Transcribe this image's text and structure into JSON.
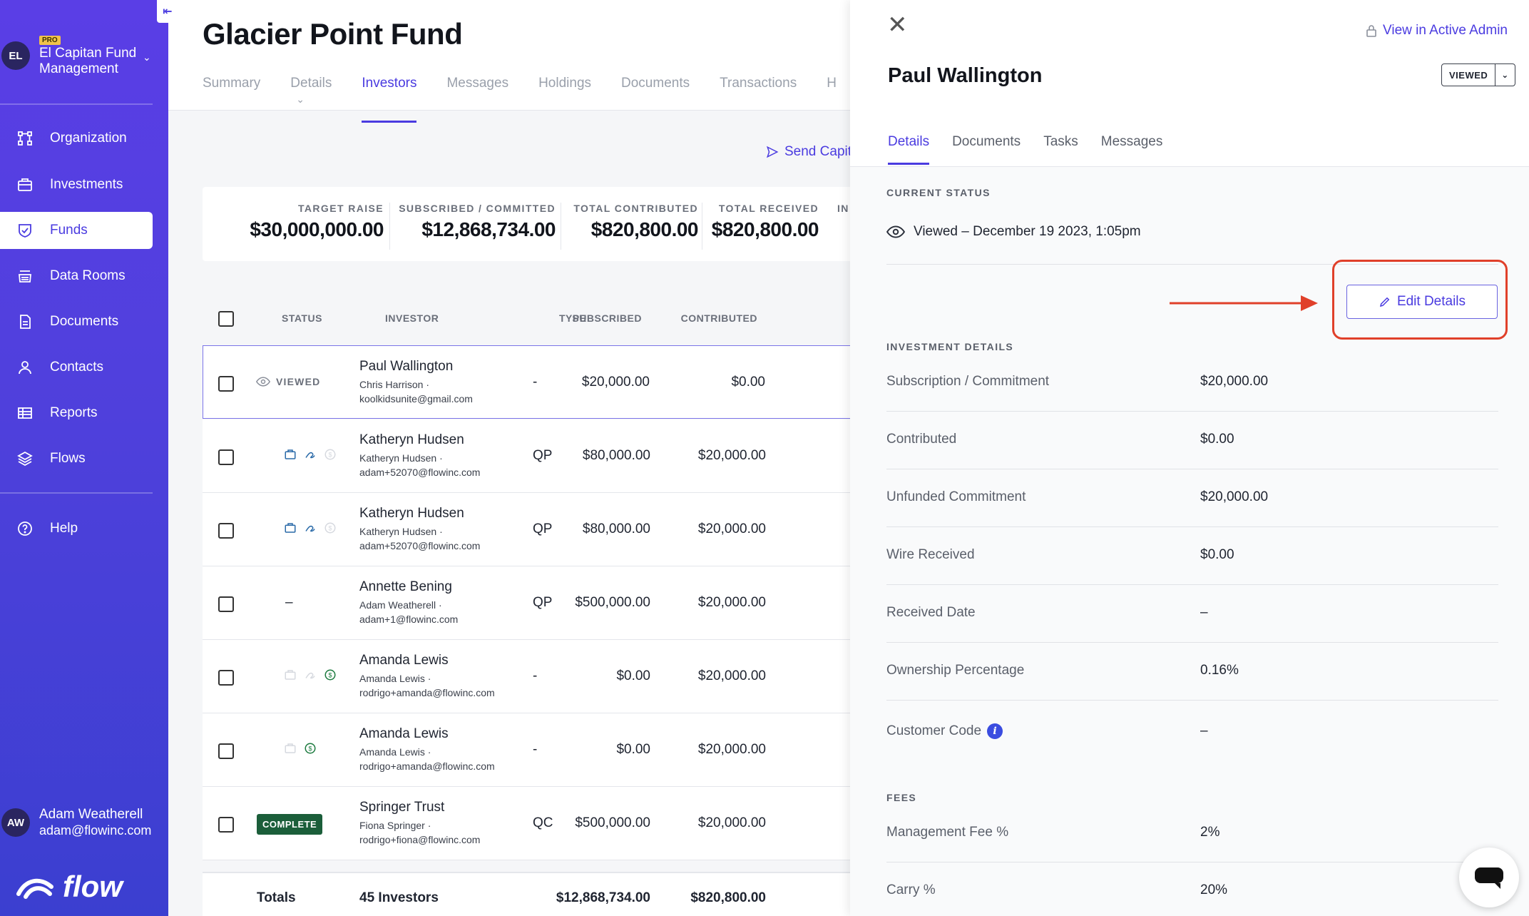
{
  "sidebar": {
    "collapse_icon": "collapse-left-icon",
    "org": {
      "initials": "EL",
      "badge": "PRO",
      "name": "El Capitan Fund Management"
    },
    "items": [
      {
        "label": "Organization",
        "icon": "org-chart-icon"
      },
      {
        "label": "Investments",
        "icon": "briefcase-icon"
      },
      {
        "label": "Funds",
        "icon": "shield-check-icon",
        "active": true
      },
      {
        "label": "Data Rooms",
        "icon": "database-icon"
      },
      {
        "label": "Documents",
        "icon": "document-icon"
      },
      {
        "label": "Contacts",
        "icon": "person-icon"
      },
      {
        "label": "Reports",
        "icon": "table-icon"
      },
      {
        "label": "Flows",
        "icon": "layers-icon"
      },
      {
        "label": "Help",
        "icon": "help-circle-icon"
      }
    ],
    "user": {
      "initials": "AW",
      "name": "Adam Weatherell",
      "email": "adam@flowinc.com"
    },
    "brand": "flow"
  },
  "main": {
    "title": "Glacier Point Fund",
    "tabs": [
      "Summary",
      "Details",
      "Investors",
      "Messages",
      "Holdings",
      "Documents",
      "Transactions",
      "H"
    ],
    "active_tab": "Investors",
    "send_capital": "Send Capit",
    "stats": [
      {
        "label": "TARGET RAISE",
        "value": "$30,000,000.00"
      },
      {
        "label": "SUBSCRIBED / COMMITTED",
        "value": "$12,868,734.00"
      },
      {
        "label": "TOTAL CONTRIBUTED",
        "value": "$820,800.00"
      },
      {
        "label": "TOTAL RECEIVED",
        "value": "$820,800.00"
      },
      {
        "label": "IN",
        "value": ""
      }
    ],
    "table": {
      "headers": {
        "status": "STATUS",
        "investor": "INVESTOR",
        "type": "TYPE",
        "subscribed": "SUBSCRIBED",
        "contributed": "CONTRIBUTED"
      },
      "rows": [
        {
          "status": "VIEWED",
          "name": "Paul Wallington",
          "contact": "Chris Harrison ·",
          "email": "koolkidsunite@gmail.com",
          "type": "-",
          "subscribed": "$20,000.00",
          "contributed": "$0.00"
        },
        {
          "status": "icons",
          "name": "Katheryn Hudsen",
          "contact": "Katheryn Hudsen ·",
          "email": "adam+52070@flowinc.com",
          "type": "QP",
          "subscribed": "$80,000.00",
          "contributed": "$20,000.00"
        },
        {
          "status": "icons",
          "name": "Katheryn Hudsen",
          "contact": "Katheryn Hudsen ·",
          "email": "adam+52070@flowinc.com",
          "type": "QP",
          "subscribed": "$80,000.00",
          "contributed": "$20,000.00"
        },
        {
          "status": "–",
          "name": "Annette Bening",
          "contact": "Adam Weatherell ·",
          "email": "adam+1@flowinc.com",
          "type": "QP",
          "subscribed": "$500,000.00",
          "contributed": "$20,000.00"
        },
        {
          "status": "icons",
          "name": "Amanda Lewis",
          "contact": "Amanda Lewis ·",
          "email": "rodrigo+amanda@flowinc.com",
          "type": "-",
          "subscribed": "$0.00",
          "contributed": "$20,000.00"
        },
        {
          "status": "icons",
          "name": "Amanda Lewis",
          "contact": "Amanda Lewis ·",
          "email": "rodrigo+amanda@flowinc.com",
          "type": "-",
          "subscribed": "$0.00",
          "contributed": "$20,000.00"
        },
        {
          "status": "COMPLETE",
          "name": "Springer Trust",
          "contact": "Fiona Springer ·",
          "email": "rodrigo+fiona@flowinc.com",
          "type": "QC",
          "subscribed": "$500,000.00",
          "contributed": "$20,000.00"
        }
      ],
      "totals": {
        "label": "Totals",
        "investors": "45 Investors",
        "subscribed": "$12,868,734.00",
        "contributed": "$820,800.00",
        "trailing": "$"
      }
    }
  },
  "drawer": {
    "close_icon": "close-icon",
    "admin_link": "View in Active Admin",
    "investor_name": "Paul Wallington",
    "status_button": "VIEWED",
    "tabs": [
      "Details",
      "Documents",
      "Tasks",
      "Messages"
    ],
    "active_tab": "Details",
    "current_status_label": "CURRENT STATUS",
    "current_status": "Viewed – December 19 2023, 1:05pm",
    "edit_button": "Edit Details",
    "investment_details_label": "INVESTMENT DETAILS",
    "details": [
      {
        "label": "Subscription / Commitment",
        "value": "$20,000.00"
      },
      {
        "label": "Contributed",
        "value": "$0.00"
      },
      {
        "label": "Unfunded Commitment",
        "value": "$20,000.00"
      },
      {
        "label": "Wire Received",
        "value": "$0.00"
      },
      {
        "label": "Received Date",
        "value": "–"
      },
      {
        "label": "Ownership Percentage",
        "value": "0.16%"
      },
      {
        "label": "Customer Code",
        "value": "–",
        "info_icon": "i"
      }
    ],
    "fees_label": "FEES",
    "fees": [
      {
        "label": "Management Fee %",
        "value": "2%"
      },
      {
        "label": "Carry %",
        "value": "20%"
      }
    ],
    "annotation_color": "#e0402a",
    "accent_color": "#4a3be0"
  }
}
